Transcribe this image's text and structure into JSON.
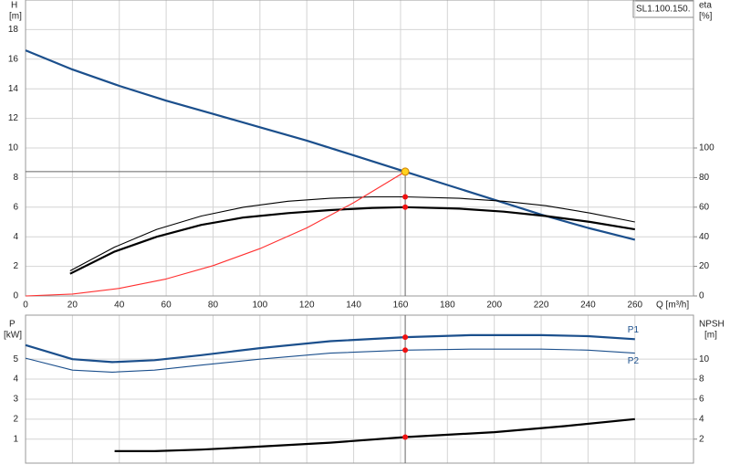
{
  "chart_data": [
    {
      "type": "line",
      "title": "SL1.100.150.",
      "ylabel": "H",
      "yunit": "[m]",
      "y2label": "eta",
      "y2unit": "[%]",
      "xlabel": "Q [m³/h]",
      "xlim": [
        0,
        285
      ],
      "xticks": [
        0,
        20,
        40,
        60,
        80,
        100,
        120,
        140,
        160,
        180,
        200,
        220,
        240,
        260
      ],
      "ylim": [
        0,
        20
      ],
      "yticks": [
        0,
        2,
        4,
        6,
        8,
        10,
        12,
        14,
        16,
        18
      ],
      "y2lim": [
        0,
        200
      ],
      "y2ticks": [
        0,
        20,
        40,
        60,
        80,
        100
      ],
      "grid": true,
      "series": [
        {
          "color": "#1b4f8c",
          "style": "thick",
          "x": [
            0,
            20,
            40,
            60,
            80,
            100,
            120,
            140,
            160,
            180,
            200,
            220,
            240,
            260
          ],
          "values": [
            16.6,
            15.3,
            14.2,
            13.2,
            12.3,
            11.4,
            10.5,
            9.5,
            8.5,
            7.5,
            6.5,
            5.5,
            4.6,
            3.8
          ]
        },
        {
          "color": "#000000",
          "style": "thin",
          "axis": "y2",
          "x": [
            19,
            38,
            56,
            75,
            93,
            112,
            130,
            148,
            162,
            185,
            204,
            222,
            241,
            260
          ],
          "values": [
            17,
            33,
            45,
            54,
            60,
            64,
            66,
            67,
            67,
            66,
            64,
            61,
            56,
            50
          ]
        },
        {
          "color": "#000000",
          "style": "thick",
          "axis": "y2",
          "x": [
            19,
            38,
            56,
            75,
            93,
            112,
            130,
            148,
            162,
            185,
            204,
            222,
            241,
            260
          ],
          "values": [
            15,
            30,
            40,
            48,
            53,
            56,
            58,
            59.5,
            60,
            59,
            57,
            54,
            50,
            45
          ]
        },
        {
          "color": "#ff3030",
          "style": "thin",
          "x": [
            0,
            20,
            40,
            60,
            80,
            100,
            120,
            140,
            162
          ],
          "values": [
            0,
            0.13,
            0.51,
            1.15,
            2.05,
            3.2,
            4.6,
            6.3,
            8.4
          ]
        }
      ],
      "points": [
        {
          "x": 162,
          "y": 8.4,
          "color": "#ffd21f"
        },
        {
          "x": 162,
          "y": 67,
          "axis": "y2",
          "color": "#ee1111"
        },
        {
          "x": 162,
          "y": 60,
          "axis": "y2",
          "color": "#ee1111"
        }
      ]
    },
    {
      "type": "line",
      "ylabel": "P",
      "yunit": "[kW]",
      "y2label": "NPSH",
      "y2unit": "[m]",
      "xlim": [
        0,
        285
      ],
      "xticks": [
        0,
        20,
        40,
        60,
        80,
        100,
        120,
        140,
        160,
        180,
        200,
        220,
        240,
        260
      ],
      "ylim": [
        -0.2,
        7.2
      ],
      "yticks": [
        1,
        2,
        3,
        4,
        5
      ],
      "y2lim": [
        -0.4,
        14.4
      ],
      "y2ticks": [
        2,
        4,
        6,
        8,
        10
      ],
      "grid": true,
      "series": [
        {
          "name": "P1",
          "color": "#1b4f8c",
          "style": "thick",
          "x": [
            0,
            20,
            37,
            55,
            75,
            100,
            130,
            162,
            190,
            220,
            240,
            260
          ],
          "values": [
            5.7,
            5.0,
            4.85,
            4.95,
            5.2,
            5.55,
            5.9,
            6.1,
            6.2,
            6.2,
            6.15,
            6.0
          ]
        },
        {
          "name": "P2",
          "color": "#1b4f8c",
          "style": "thin",
          "x": [
            0,
            20,
            37,
            55,
            75,
            100,
            130,
            162,
            190,
            220,
            240,
            260
          ],
          "values": [
            5.05,
            4.45,
            4.35,
            4.45,
            4.7,
            5.0,
            5.3,
            5.45,
            5.5,
            5.5,
            5.45,
            5.3
          ]
        },
        {
          "color": "#000000",
          "style": "thick",
          "axis": "y2",
          "x": [
            38,
            55,
            75,
            100,
            130,
            162,
            200,
            230,
            260
          ],
          "values": [
            0.8,
            0.8,
            0.95,
            1.25,
            1.65,
            2.2,
            2.7,
            3.3,
            4.0
          ]
        }
      ],
      "points": [
        {
          "x": 162,
          "y": 6.1,
          "color": "#ee1111"
        },
        {
          "x": 162,
          "y": 5.45,
          "color": "#ee1111"
        },
        {
          "x": 162,
          "y": 2.2,
          "axis": "y2",
          "color": "#ee1111"
        }
      ]
    }
  ]
}
